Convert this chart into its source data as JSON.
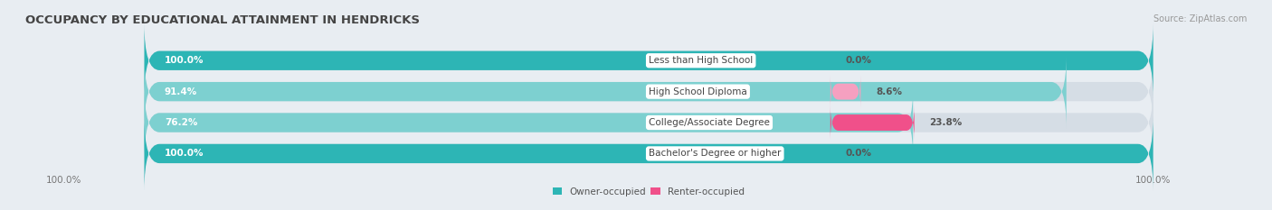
{
  "title": "OCCUPANCY BY EDUCATIONAL ATTAINMENT IN HENDRICKS",
  "source": "Source: ZipAtlas.com",
  "categories": [
    "Less than High School",
    "High School Diploma",
    "College/Associate Degree",
    "Bachelor's Degree or higher"
  ],
  "owner_values": [
    100.0,
    91.4,
    76.2,
    100.0
  ],
  "renter_values": [
    0.0,
    8.6,
    23.8,
    0.0
  ],
  "owner_color": "#2db5b5",
  "renter_color_strong": "#f0508a",
  "renter_color_light": "#f5a0c0",
  "owner_light_color": "#7dd0d0",
  "bg_color": "#e8edf2",
  "bar_bg_color": "#d5dde5",
  "bar_height": 0.62,
  "title_fontsize": 9.5,
  "label_fontsize": 7.5,
  "tick_fontsize": 7.5,
  "legend_fontsize": 7.5,
  "source_fontsize": 7
}
